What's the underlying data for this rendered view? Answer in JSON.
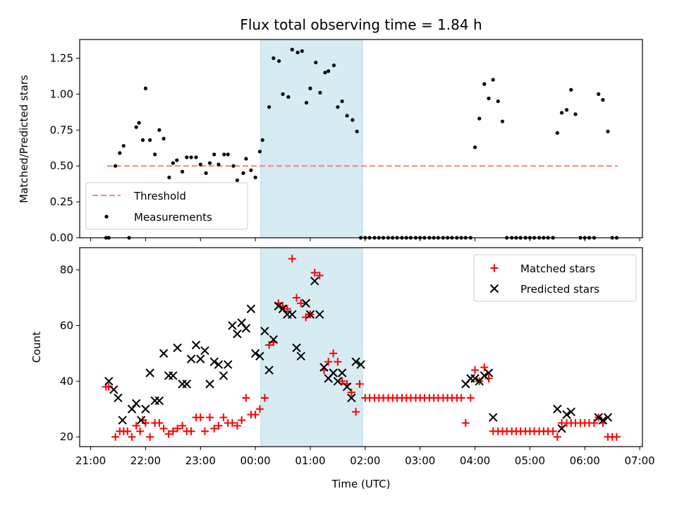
{
  "chart_data": [
    {
      "type": "scatter",
      "title": "Flux total observing time = 1.84 h",
      "xlabel": "",
      "ylabel": "Matched/Predicted stars",
      "ylim": [
        0,
        1.38
      ],
      "yticks": [
        0.0,
        0.25,
        0.5,
        0.75,
        1.0,
        1.25
      ],
      "ytick_labels": [
        "0.00",
        "0.25",
        "0.50",
        "0.75",
        "1.00",
        "1.25"
      ],
      "xlim_hours": [
        20.8,
        31.05
      ],
      "highlight_span_hours": [
        24.1,
        25.95
      ],
      "threshold": {
        "label": "Threshold",
        "value": 0.5,
        "x_start": 21.3,
        "x_end": 30.6
      },
      "legend_position": "lower-left",
      "series": [
        {
          "name": "Measurements",
          "x": [
            21.28,
            21.33,
            21.45,
            21.53,
            21.6,
            21.7,
            21.83,
            21.88,
            21.95,
            22.0,
            22.08,
            22.17,
            22.25,
            22.33,
            22.43,
            22.5,
            22.57,
            22.67,
            22.75,
            22.83,
            22.92,
            23.0,
            23.1,
            23.17,
            23.25,
            23.33,
            23.43,
            23.5,
            23.6,
            23.67,
            23.78,
            23.83,
            23.92,
            24.0,
            24.08,
            24.13,
            24.25,
            24.33,
            24.43,
            24.5,
            24.6,
            24.67,
            24.77,
            24.85,
            24.93,
            25.0,
            25.1,
            25.18,
            25.27,
            25.33,
            25.43,
            25.5,
            25.58,
            25.67,
            25.77,
            25.85,
            25.92
          ],
          "values": [
            0.0,
            0.0,
            0.5,
            0.59,
            0.64,
            0.0,
            0.77,
            0.8,
            0.68,
            1.04,
            0.68,
            0.58,
            0.75,
            0.69,
            0.42,
            0.52,
            0.54,
            0.46,
            0.56,
            0.56,
            0.56,
            0.51,
            0.45,
            0.52,
            0.58,
            0.51,
            0.58,
            0.58,
            0.5,
            0.4,
            0.45,
            0.55,
            0.47,
            0.42,
            0.6,
            0.68,
            0.91,
            1.25,
            1.23,
            1.0,
            0.98,
            1.31,
            1.29,
            1.3,
            0.94,
            1.04,
            1.22,
            1.01,
            1.15,
            1.16,
            1.2,
            0.91,
            0.95,
            0.85,
            0.82,
            0.74,
            0.0
          ]
        },
        {
          "name": "Measurements",
          "x": [
            26.0,
            26.08,
            26.17,
            26.25,
            26.33,
            26.42,
            26.5,
            26.58,
            26.67,
            26.75,
            26.83,
            26.92,
            27.0,
            27.08,
            27.17,
            27.25,
            27.33,
            27.42,
            27.5,
            27.58,
            27.67,
            27.75,
            27.83,
            27.92,
            28.0,
            28.08,
            28.17,
            28.25,
            28.33,
            28.42,
            28.5,
            28.58,
            28.67,
            28.75,
            28.83,
            28.92,
            29.0,
            29.08,
            29.17,
            29.25,
            29.33,
            29.42,
            29.5,
            29.58,
            29.67,
            29.75,
            29.83,
            29.92,
            30.0,
            30.08,
            30.17,
            30.25,
            30.33,
            30.42,
            30.5,
            30.58
          ],
          "values": [
            0.0,
            0.0,
            0.0,
            0.0,
            0.0,
            0.0,
            0.0,
            0.0,
            0.0,
            0.0,
            0.0,
            0.0,
            0.0,
            0.0,
            0.0,
            0.0,
            0.0,
            0.0,
            0.0,
            0.0,
            0.0,
            0.0,
            0.0,
            0.0,
            0.63,
            0.83,
            1.07,
            0.97,
            1.1,
            0.95,
            0.81,
            0.0,
            0.0,
            0.0,
            0.0,
            0.0,
            0.0,
            0.0,
            0.0,
            0.0,
            0.0,
            0.0,
            0.73,
            0.87,
            0.89,
            1.03,
            0.86,
            0.0,
            0.0,
            0.0,
            0.0,
            1.0,
            0.96,
            0.74,
            0.0,
            0.0
          ]
        }
      ]
    },
    {
      "type": "scatter",
      "title": "",
      "xlabel": "Time (UTC)",
      "ylabel": "Count",
      "ylim": [
        16.5,
        88
      ],
      "yticks": [
        20,
        40,
        60,
        80
      ],
      "ytick_labels": [
        "20",
        "40",
        "60",
        "80"
      ],
      "xlim_hours": [
        20.8,
        31.05
      ],
      "xticks_hours": [
        21,
        22,
        23,
        24,
        25,
        26,
        27,
        28,
        29,
        30,
        31
      ],
      "xtick_labels": [
        "21:00",
        "22:00",
        "23:00",
        "00:00",
        "01:00",
        "02:00",
        "03:00",
        "04:00",
        "05:00",
        "06:00",
        "07:00"
      ],
      "highlight_span_hours": [
        24.1,
        25.95
      ],
      "legend_position": "upper-right",
      "series": [
        {
          "name": "Matched stars",
          "x": [
            21.28,
            21.33,
            21.45,
            21.53,
            21.6,
            21.67,
            21.75,
            21.83,
            21.9,
            21.95,
            22.0,
            22.08,
            22.17,
            22.25,
            22.33,
            22.42,
            22.5,
            22.58,
            22.67,
            22.75,
            22.83,
            22.92,
            23.0,
            23.08,
            23.17,
            23.25,
            23.33,
            23.42,
            23.5,
            23.58,
            23.67,
            23.75,
            23.83,
            23.92,
            24.0,
            24.08,
            24.17,
            24.25,
            24.33,
            24.42,
            24.5,
            24.58,
            24.67,
            24.75,
            24.83,
            24.92,
            25.0,
            25.08,
            25.17,
            25.25,
            25.33,
            25.42,
            25.5,
            25.58,
            25.67,
            25.75,
            25.83
          ],
          "values": [
            38,
            38,
            20,
            22,
            22,
            22,
            20,
            24,
            22,
            26,
            25,
            20,
            25,
            25,
            23,
            21,
            22,
            23,
            24,
            22,
            22,
            27,
            27,
            22,
            27,
            23,
            24,
            27,
            25,
            25,
            24,
            26,
            34,
            28,
            28,
            30,
            34,
            53,
            54,
            68,
            67,
            66,
            84,
            70,
            68,
            63,
            64,
            79,
            78,
            44,
            47,
            50,
            47,
            40,
            39,
            36,
            29
          ]
        },
        {
          "name": "Matched stars",
          "x": [
            25.9,
            26.0,
            26.08,
            26.17,
            26.25,
            26.33,
            26.42,
            26.5,
            26.58,
            26.67,
            26.75,
            26.83,
            26.92,
            27.0,
            27.08,
            27.17,
            27.25,
            27.33,
            27.42,
            27.5,
            27.58,
            27.67,
            27.75,
            27.83,
            27.92,
            28.0,
            28.08,
            28.17,
            28.25,
            28.33,
            28.42,
            28.5,
            28.58,
            28.67,
            28.75,
            28.83,
            28.92,
            29.0,
            29.08,
            29.17,
            29.25,
            29.33,
            29.42,
            29.5,
            29.58,
            29.67,
            29.75,
            29.83,
            29.92,
            30.0,
            30.08,
            30.17,
            30.25,
            30.33,
            30.42,
            30.5,
            30.58
          ],
          "values": [
            39,
            34,
            34,
            34,
            34,
            34,
            34,
            34,
            34,
            34,
            34,
            34,
            34,
            34,
            34,
            34,
            34,
            34,
            34,
            34,
            34,
            34,
            34,
            25,
            34,
            44,
            40,
            45,
            41,
            22,
            22,
            22,
            22,
            22,
            22,
            22,
            22,
            22,
            22,
            22,
            22,
            22,
            22,
            20,
            25,
            25,
            25,
            25,
            25,
            25,
            25,
            25,
            27,
            25,
            20,
            20,
            20
          ]
        },
        {
          "name": "Predicted stars",
          "x": [
            21.33,
            21.42,
            21.5,
            21.58,
            21.75,
            21.83,
            21.92,
            22.0,
            22.08,
            22.17,
            22.25,
            22.33,
            22.42,
            22.5,
            22.58,
            22.67,
            22.75,
            22.83,
            22.92,
            23.0,
            23.08,
            23.17,
            23.25,
            23.33,
            23.42,
            23.5,
            23.58,
            23.67,
            23.75,
            23.83,
            23.92,
            24.0,
            24.08,
            24.17,
            24.25,
            24.33,
            24.42,
            24.5,
            24.58,
            24.67,
            24.75,
            24.83,
            24.92,
            25.0,
            25.08,
            25.17,
            25.25,
            25.33,
            25.42,
            25.5,
            25.58,
            25.67,
            25.75,
            25.83,
            25.92
          ],
          "values": [
            40,
            37,
            34,
            26,
            30,
            32,
            26,
            30,
            43,
            33,
            33,
            50,
            42,
            42,
            52,
            39,
            39,
            48,
            53,
            48,
            51,
            39,
            47,
            46,
            42,
            46,
            60,
            57,
            61,
            59,
            66,
            50,
            49,
            58,
            44,
            55,
            67,
            66,
            64,
            64,
            52,
            49,
            68,
            64,
            76,
            64,
            45,
            41,
            43,
            40,
            43,
            38,
            34,
            47,
            46
          ]
        },
        {
          "name": "Predicted stars",
          "x": [
            27.83,
            27.92,
            28.0,
            28.08,
            28.17,
            28.25,
            28.33,
            29.5,
            29.58,
            29.67,
            29.75,
            30.25,
            30.33,
            30.42
          ],
          "values": [
            39,
            41,
            41,
            40,
            42,
            43,
            27,
            30,
            23,
            28,
            29,
            27,
            26,
            27
          ]
        }
      ]
    }
  ]
}
